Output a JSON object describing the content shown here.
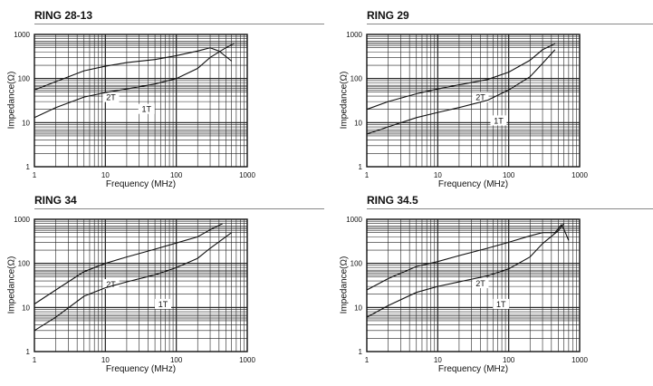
{
  "chart_data": [
    {
      "type": "line",
      "title": "RING 28-13",
      "xlabel": "Frequency (MHz)",
      "ylabel": "Impedance(Ω)",
      "xscale": "log",
      "yscale": "log",
      "xlim": [
        1,
        1000
      ],
      "ylim": [
        1,
        1000
      ],
      "xticks": [
        "1",
        "10",
        "100",
        "1000"
      ],
      "yticks": [
        "1",
        "10",
        "100",
        "1000"
      ],
      "grid": true,
      "series": [
        {
          "name": "2T",
          "points": [
            [
              1,
              55
            ],
            [
              2,
              85
            ],
            [
              5,
              150
            ],
            [
              10,
              190
            ],
            [
              20,
              230
            ],
            [
              50,
              270
            ],
            [
              100,
              330
            ],
            [
              200,
              420
            ],
            [
              300,
              500
            ],
            [
              400,
              420
            ],
            [
              600,
              250
            ]
          ]
        },
        {
          "name": "1T",
          "points": [
            [
              1,
              13
            ],
            [
              2,
              22
            ],
            [
              5,
              38
            ],
            [
              10,
              48
            ],
            [
              20,
              58
            ],
            [
              50,
              75
            ],
            [
              100,
              100
            ],
            [
              200,
              170
            ],
            [
              300,
              300
            ],
            [
              500,
              500
            ],
            [
              650,
              620
            ]
          ]
        }
      ]
    },
    {
      "type": "line",
      "title": "RING 29",
      "xlabel": "Frequency (MHz)",
      "ylabel": "Impedance(Ω)",
      "xscale": "log",
      "yscale": "log",
      "xlim": [
        1,
        1000
      ],
      "ylim": [
        1,
        1000
      ],
      "xticks": [
        "1",
        "10",
        "100",
        "1000"
      ],
      "yticks": [
        "1",
        "10",
        "100",
        "1000"
      ],
      "grid": true,
      "series": [
        {
          "name": "2T",
          "points": [
            [
              1,
              20
            ],
            [
              2,
              30
            ],
            [
              5,
              45
            ],
            [
              10,
              58
            ],
            [
              20,
              72
            ],
            [
              50,
              95
            ],
            [
              100,
              140
            ],
            [
              200,
              260
            ],
            [
              300,
              450
            ],
            [
              450,
              620
            ]
          ]
        },
        {
          "name": "1T",
          "points": [
            [
              1,
              5.5
            ],
            [
              2,
              8
            ],
            [
              5,
              13
            ],
            [
              10,
              17
            ],
            [
              20,
              22
            ],
            [
              50,
              32
            ],
            [
              100,
              55
            ],
            [
              200,
              110
            ],
            [
              300,
              220
            ],
            [
              450,
              450
            ]
          ]
        }
      ]
    },
    {
      "type": "line",
      "title": "RING 34",
      "xlabel": "Frequency (MHz)",
      "ylabel": "Impedance(Ω)",
      "xscale": "log",
      "yscale": "log",
      "xlim": [
        1,
        1000
      ],
      "ylim": [
        1,
        1000
      ],
      "xticks": [
        "1",
        "10",
        "100",
        "1000"
      ],
      "yticks": [
        "1",
        "10",
        "100",
        "1000"
      ],
      "grid": true,
      "series": [
        {
          "name": "2T",
          "points": [
            [
              1,
              12
            ],
            [
              2,
              25
            ],
            [
              5,
              65
            ],
            [
              10,
              100
            ],
            [
              20,
              140
            ],
            [
              50,
              210
            ],
            [
              100,
              290
            ],
            [
              200,
              400
            ],
            [
              300,
              580
            ],
            [
              450,
              800
            ]
          ]
        },
        {
          "name": "1T",
          "points": [
            [
              1,
              3
            ],
            [
              2,
              6
            ],
            [
              5,
              18
            ],
            [
              10,
              28
            ],
            [
              20,
              38
            ],
            [
              50,
              55
            ],
            [
              100,
              80
            ],
            [
              200,
              130
            ],
            [
              300,
              220
            ],
            [
              600,
              500
            ]
          ]
        }
      ]
    },
    {
      "type": "line",
      "title": "RING 34.5",
      "xlabel": "Frequency (MHz)",
      "ylabel": "Impedance(Ω)",
      "xscale": "log",
      "yscale": "log",
      "xlim": [
        1,
        1000
      ],
      "ylim": [
        1,
        1000
      ],
      "xticks": [
        "1",
        "10",
        "100",
        "1000"
      ],
      "yticks": [
        "1",
        "10",
        "100",
        "1000"
      ],
      "grid": true,
      "series": [
        {
          "name": "2T",
          "points": [
            [
              1,
              25
            ],
            [
              2,
              45
            ],
            [
              5,
              85
            ],
            [
              10,
              110
            ],
            [
              20,
              150
            ],
            [
              50,
              220
            ],
            [
              100,
              300
            ],
            [
              200,
              420
            ],
            [
              300,
              500
            ],
            [
              450,
              500
            ],
            [
              550,
              750
            ],
            [
              600,
              600
            ],
            [
              700,
              330
            ]
          ]
        },
        {
          "name": "1T",
          "points": [
            [
              1,
              6
            ],
            [
              2,
              11
            ],
            [
              5,
              22
            ],
            [
              10,
              30
            ],
            [
              20,
              38
            ],
            [
              50,
              52
            ],
            [
              100,
              75
            ],
            [
              200,
              140
            ],
            [
              300,
              280
            ],
            [
              500,
              550
            ],
            [
              600,
              800
            ]
          ]
        }
      ]
    }
  ]
}
